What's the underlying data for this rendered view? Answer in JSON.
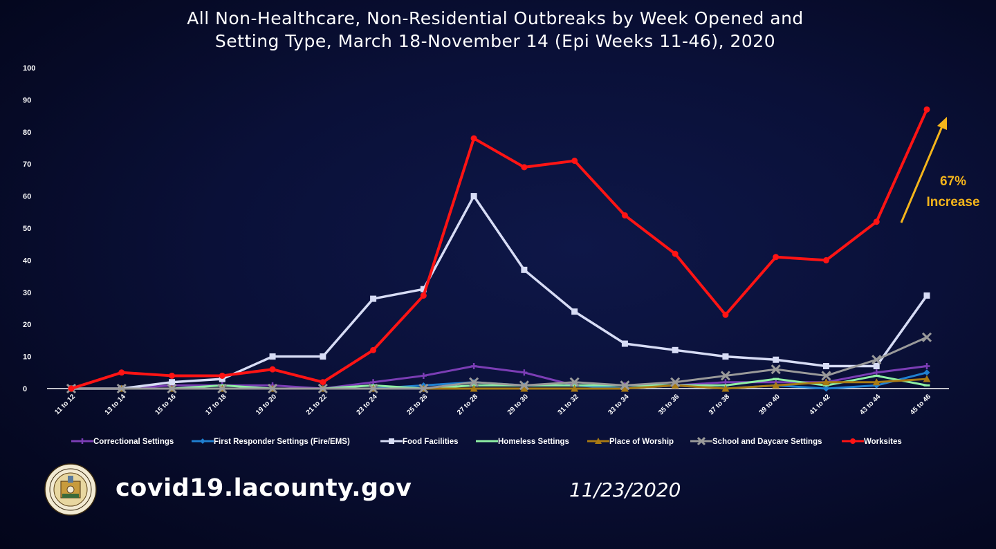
{
  "title_line1": "All Non-Healthcare, Non-Residential Outbreaks by Week Opened and",
  "title_line2": "Setting Type, March 18-November 14 (Epi Weeks 11-46), 2020",
  "footer": {
    "url": "covid19.lacounty.gov",
    "date": "11/23/2020"
  },
  "annotation": {
    "line1": "67%",
    "line2": "Increase",
    "color": "#f5b51b"
  },
  "chart_data": {
    "type": "line",
    "categories": [
      "11 to 12",
      "13 to 14",
      "15 to 16",
      "17 to 18",
      "19 to 20",
      "21 to 22",
      "23 to 24",
      "25 to 26",
      "27 to 28",
      "29 to 30",
      "31 to 32",
      "33 to 34",
      "35 to 36",
      "37 to 38",
      "39 to 40",
      "41 to 42",
      "43 to 44",
      "45 to 46"
    ],
    "ylim": [
      0,
      100
    ],
    "yticks": [
      0,
      10,
      20,
      30,
      40,
      50,
      60,
      70,
      80,
      90,
      100
    ],
    "legend_position": "bottom",
    "series": [
      {
        "name": "Correctional Settings",
        "color": "#7b3db5",
        "marker": "cross",
        "values": [
          0,
          0,
          1,
          1,
          1,
          0,
          2,
          4,
          7,
          5,
          1,
          1,
          1,
          2,
          2,
          2,
          5,
          7
        ]
      },
      {
        "name": "First Responder Settings (Fire/EMS)",
        "color": "#1f7fd0",
        "marker": "diamond",
        "values": [
          0,
          0,
          0,
          0,
          0,
          0,
          0,
          1,
          2,
          1,
          1,
          0,
          1,
          0,
          1,
          0,
          1,
          5
        ]
      },
      {
        "name": "Food Facilities",
        "color": "#d7dcf5",
        "marker": "square",
        "values": [
          0,
          0,
          2,
          3,
          10,
          10,
          28,
          31,
          60,
          37,
          24,
          14,
          12,
          10,
          9,
          7,
          7,
          29
        ]
      },
      {
        "name": "Homeless Settings",
        "color": "#8ff0a4",
        "marker": "dash",
        "values": [
          0,
          0,
          0,
          1,
          0,
          0,
          1,
          0,
          1,
          1,
          1,
          1,
          1,
          1,
          3,
          1,
          4,
          1
        ]
      },
      {
        "name": "Place of Worship",
        "color": "#a87a13",
        "marker": "triangle",
        "values": [
          0,
          0,
          0,
          0,
          0,
          0,
          0,
          0,
          0,
          0,
          0,
          0,
          1,
          0,
          1,
          2,
          2,
          3
        ]
      },
      {
        "name": "School and Daycare Settings",
        "color": "#9a9a9a",
        "marker": "x",
        "values": [
          0,
          0,
          0,
          0,
          0,
          0,
          0,
          0,
          2,
          1,
          2,
          1,
          2,
          4,
          6,
          4,
          9,
          16
        ]
      },
      {
        "name": "Worksites",
        "color": "#ff1414",
        "marker": "circle",
        "values": [
          0,
          5,
          4,
          4,
          6,
          2,
          12,
          29,
          78,
          69,
          71,
          54,
          42,
          23,
          41,
          40,
          52,
          87
        ]
      }
    ]
  }
}
